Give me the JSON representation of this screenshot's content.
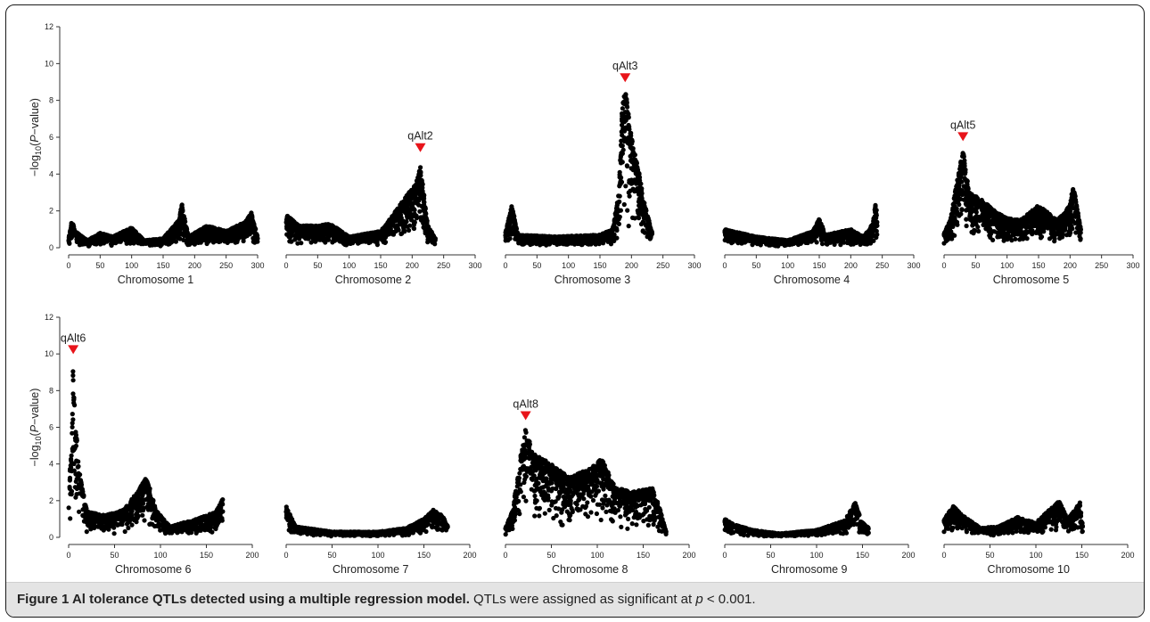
{
  "caption": {
    "title": "Figure 1 Al tolerance QTLs detected using a multiple regression model.",
    "body_before": " QTLs were assigned as significant at ",
    "p_symbol": "p",
    "body_after": " < 0.001."
  },
  "colors": {
    "points": "#000000",
    "marker": "#e8141a",
    "axis": "#333333"
  },
  "chart_data": [
    {
      "type": "scatter",
      "xlabel": "Chromosome 1",
      "ylabel": "−log10(P−value)",
      "xlim": [
        0,
        300
      ],
      "xticks": [
        0,
        50,
        100,
        150,
        200,
        250,
        300
      ],
      "ylim": [
        0,
        12
      ],
      "yticks": [
        0,
        2,
        4,
        6,
        8,
        10,
        12
      ],
      "extent": 300,
      "profile": [
        [
          0,
          0.5
        ],
        [
          5,
          1.6
        ],
        [
          10,
          0.9
        ],
        [
          30,
          0.4
        ],
        [
          50,
          0.8
        ],
        [
          70,
          0.6
        ],
        [
          100,
          1.1
        ],
        [
          120,
          0.4
        ],
        [
          150,
          0.5
        ],
        [
          175,
          1.5
        ],
        [
          180,
          2.4
        ],
        [
          190,
          0.6
        ],
        [
          220,
          1.2
        ],
        [
          250,
          0.9
        ],
        [
          280,
          1.4
        ],
        [
          290,
          1.9
        ],
        [
          300,
          0.6
        ]
      ],
      "qtl": null
    },
    {
      "type": "scatter",
      "xlabel": "Chromosome 2",
      "ylabel": "",
      "xlim": [
        0,
        300
      ],
      "xticks": [
        0,
        50,
        100,
        150,
        200,
        250,
        300
      ],
      "ylim": [
        0,
        12
      ],
      "yticks": [
        0,
        2,
        4,
        6,
        8,
        10,
        12
      ],
      "extent": 237,
      "profile": [
        [
          0,
          1.8
        ],
        [
          20,
          1.2
        ],
        [
          50,
          1.2
        ],
        [
          70,
          1.3
        ],
        [
          100,
          0.6
        ],
        [
          150,
          0.9
        ],
        [
          170,
          1.8
        ],
        [
          190,
          2.8
        ],
        [
          205,
          3.4
        ],
        [
          213,
          4.5
        ],
        [
          225,
          1.2
        ],
        [
          237,
          0.5
        ]
      ],
      "qtl": {
        "label": "qAlt2",
        "x": 213,
        "y": 4.9
      }
    },
    {
      "type": "scatter",
      "xlabel": "Chromosome 3",
      "ylabel": "",
      "xlim": [
        0,
        300
      ],
      "xticks": [
        0,
        50,
        100,
        150,
        200,
        250,
        300
      ],
      "ylim": [
        0,
        12
      ],
      "yticks": [
        0,
        2,
        4,
        6,
        8,
        10,
        12
      ],
      "extent": 233,
      "profile": [
        [
          0,
          0.8
        ],
        [
          10,
          2.3
        ],
        [
          20,
          0.7
        ],
        [
          80,
          0.6
        ],
        [
          150,
          0.7
        ],
        [
          170,
          1.0
        ],
        [
          180,
          3.0
        ],
        [
          185,
          7.5
        ],
        [
          190,
          8.7
        ],
        [
          200,
          6.0
        ],
        [
          210,
          4.5
        ],
        [
          220,
          2.5
        ],
        [
          233,
          0.8
        ]
      ],
      "qtl": {
        "label": "qAlt3",
        "x": 190,
        "y": 8.7
      }
    },
    {
      "type": "scatter",
      "xlabel": "Chromosome 4",
      "ylabel": "",
      "xlim": [
        0,
        300
      ],
      "xticks": [
        0,
        50,
        100,
        150,
        200,
        250,
        300
      ],
      "ylim": [
        0,
        12
      ],
      "yticks": [
        0,
        2,
        4,
        6,
        8,
        10,
        12
      ],
      "extent": 242,
      "profile": [
        [
          0,
          1.0
        ],
        [
          50,
          0.6
        ],
        [
          100,
          0.4
        ],
        [
          140,
          0.9
        ],
        [
          150,
          1.6
        ],
        [
          160,
          0.7
        ],
        [
          200,
          1.0
        ],
        [
          220,
          0.6
        ],
        [
          235,
          1.3
        ],
        [
          240,
          2.6
        ],
        [
          242,
          1.2
        ]
      ],
      "qtl": null
    },
    {
      "type": "scatter",
      "xlabel": "Chromosome 5",
      "ylabel": "",
      "xlim": [
        0,
        300
      ],
      "xticks": [
        0,
        50,
        100,
        150,
        200,
        250,
        300
      ],
      "ylim": [
        0,
        12
      ],
      "yticks": [
        0,
        2,
        4,
        6,
        8,
        10,
        12
      ],
      "extent": 217,
      "profile": [
        [
          0,
          0.8
        ],
        [
          10,
          1.5
        ],
        [
          20,
          3.5
        ],
        [
          30,
          5.3
        ],
        [
          40,
          3.0
        ],
        [
          60,
          2.6
        ],
        [
          80,
          2.0
        ],
        [
          100,
          1.6
        ],
        [
          120,
          1.5
        ],
        [
          150,
          2.3
        ],
        [
          180,
          1.5
        ],
        [
          200,
          2.3
        ],
        [
          205,
          3.5
        ],
        [
          217,
          1.0
        ]
      ],
      "qtl": {
        "label": "qAlt5",
        "x": 30,
        "y": 5.5
      }
    },
    {
      "type": "scatter",
      "xlabel": "Chromosome 6",
      "ylabel": "−log10(P−value)",
      "xlim": [
        0,
        200
      ],
      "xticks": [
        0,
        50,
        100,
        150,
        200
      ],
      "ylim": [
        0,
        12
      ],
      "yticks": [
        0,
        2,
        4,
        6,
        8,
        10,
        12
      ],
      "extent": 168,
      "profile": [
        [
          0,
          2.5
        ],
        [
          3,
          5.0
        ],
        [
          5,
          9.7
        ],
        [
          8,
          6.0
        ],
        [
          12,
          3.5
        ],
        [
          20,
          1.4
        ],
        [
          40,
          1.2
        ],
        [
          60,
          1.5
        ],
        [
          75,
          2.5
        ],
        [
          85,
          3.3
        ],
        [
          95,
          1.5
        ],
        [
          110,
          0.6
        ],
        [
          140,
          1.0
        ],
        [
          160,
          1.4
        ],
        [
          168,
          2.1
        ]
      ],
      "qtl": {
        "label": "qAlt6",
        "x": 5,
        "y": 9.7
      }
    },
    {
      "type": "scatter",
      "xlabel": "Chromosome 7",
      "ylabel": "",
      "xlim": [
        0,
        200
      ],
      "xticks": [
        0,
        50,
        100,
        150,
        200
      ],
      "ylim": [
        0,
        12
      ],
      "yticks": [
        0,
        2,
        4,
        6,
        8,
        10,
        12
      ],
      "extent": 176,
      "profile": [
        [
          0,
          1.7
        ],
        [
          10,
          0.6
        ],
        [
          50,
          0.3
        ],
        [
          100,
          0.3
        ],
        [
          130,
          0.5
        ],
        [
          150,
          1.0
        ],
        [
          160,
          1.5
        ],
        [
          170,
          1.2
        ],
        [
          176,
          0.6
        ]
      ],
      "qtl": null
    },
    {
      "type": "scatter",
      "xlabel": "Chromosome 8",
      "ylabel": "",
      "xlim": [
        0,
        200
      ],
      "xticks": [
        0,
        50,
        100,
        150,
        200
      ],
      "ylim": [
        0,
        12
      ],
      "yticks": [
        0,
        2,
        4,
        6,
        8,
        10,
        12
      ],
      "extent": 175,
      "profile": [
        [
          0,
          0.5
        ],
        [
          8,
          1.5
        ],
        [
          15,
          4.0
        ],
        [
          22,
          6.0
        ],
        [
          30,
          4.6
        ],
        [
          50,
          4.0
        ],
        [
          70,
          3.3
        ],
        [
          90,
          3.7
        ],
        [
          105,
          4.3
        ],
        [
          120,
          2.7
        ],
        [
          140,
          2.5
        ],
        [
          160,
          2.7
        ],
        [
          168,
          1.6
        ],
        [
          175,
          0.3
        ]
      ],
      "qtl": {
        "label": "qAlt8",
        "x": 22,
        "y": 6.1
      }
    },
    {
      "type": "scatter",
      "xlabel": "Chromosome 9",
      "ylabel": "",
      "xlim": [
        0,
        200
      ],
      "xticks": [
        0,
        50,
        100,
        150,
        200
      ],
      "ylim": [
        0,
        12
      ],
      "yticks": [
        0,
        2,
        4,
        6,
        8,
        10,
        12
      ],
      "extent": 157,
      "profile": [
        [
          0,
          1.0
        ],
        [
          10,
          0.7
        ],
        [
          30,
          0.4
        ],
        [
          60,
          0.2
        ],
        [
          100,
          0.4
        ],
        [
          130,
          0.9
        ],
        [
          142,
          1.9
        ],
        [
          150,
          0.8
        ],
        [
          157,
          0.5
        ]
      ],
      "qtl": null
    },
    {
      "type": "scatter",
      "xlabel": "Chromosome 10",
      "ylabel": "",
      "xlim": [
        0,
        200
      ],
      "xticks": [
        0,
        50,
        100,
        150,
        200
      ],
      "ylim": [
        0,
        12
      ],
      "yticks": [
        0,
        2,
        4,
        6,
        8,
        10,
        12
      ],
      "extent": 151,
      "profile": [
        [
          0,
          1.0
        ],
        [
          10,
          1.7
        ],
        [
          20,
          1.2
        ],
        [
          40,
          0.5
        ],
        [
          60,
          0.6
        ],
        [
          80,
          1.1
        ],
        [
          100,
          0.8
        ],
        [
          125,
          2.0
        ],
        [
          135,
          1.0
        ],
        [
          148,
          1.9
        ],
        [
          151,
          0.6
        ]
      ],
      "qtl": null
    }
  ]
}
